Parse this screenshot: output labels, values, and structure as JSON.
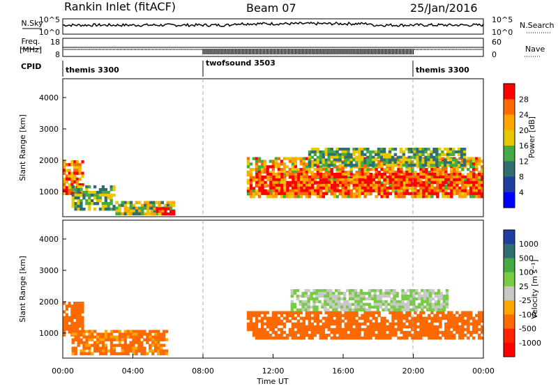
{
  "header": {
    "station": "Rankin Inlet (fitACF)",
    "beam": "Beam 07",
    "date": "25/Jan/2016"
  },
  "side_labels": {
    "nsky": "N.Sky",
    "freq_top": "Freq.",
    "freq_unit": "[MHz]",
    "cpid": "CPID",
    "nsearch": "N.Search",
    "nave": "Nave"
  },
  "chart_data": [
    {
      "type": "line",
      "name": "noise-panel",
      "left_axis_ticks": [
        "10^5",
        "10^0"
      ],
      "right_axis_ticks": [
        "10^5",
        "10^0"
      ],
      "series_left": "N.Sky",
      "series_right": "N.Search"
    },
    {
      "type": "line",
      "name": "freq-nave-panel",
      "left_axis_ticks": [
        "18",
        "8"
      ],
      "right_axis_ticks": [
        "60",
        "0"
      ],
      "series_left": "Freq.",
      "series_right": "Nave",
      "nave_high_interval_hours": [
        8.0,
        20.0
      ]
    },
    {
      "type": "table",
      "name": "cpid-bar",
      "segments": [
        {
          "label": "themis 3300",
          "start_hour": 0,
          "end_hour": 8.0
        },
        {
          "label": "twofsound 3503",
          "start_hour": 8.0,
          "end_hour": 20.0
        },
        {
          "label": "themis 3300",
          "start_hour": 20.0,
          "end_hour": 24.0
        }
      ]
    },
    {
      "type": "heatmap",
      "name": "power-panel",
      "ylabel": "Slant Range [km]",
      "y_ticks": [
        1000,
        2000,
        3000,
        4000
      ],
      "ylim": [
        200,
        4600
      ],
      "xlim_hours": [
        0,
        24
      ],
      "colorbar_label": "Power [dB]",
      "colorbar_ticks": [
        "28",
        "24",
        "20",
        "16",
        "12",
        "8",
        "4"
      ],
      "colorbar_colors": [
        "#ff0000",
        "#ff6a00",
        "#ffa500",
        "#e8c800",
        "#44aa44",
        "#2f6f6f",
        "#1f3fa0",
        "#0000ff"
      ],
      "regions": [
        {
          "start_hour": 0.0,
          "end_hour": 1.2,
          "range_lo": 900,
          "range_hi": 2000,
          "value": 24
        },
        {
          "start_hour": 0.5,
          "end_hour": 3.0,
          "range_lo": 400,
          "range_hi": 1200,
          "value": 12
        },
        {
          "start_hour": 3.0,
          "end_hour": 6.4,
          "range_lo": 250,
          "range_hi": 700,
          "value": 14
        },
        {
          "start_hour": 5.0,
          "end_hour": 6.4,
          "range_lo": 250,
          "range_hi": 500,
          "value": 26
        },
        {
          "start_hour": 10.5,
          "end_hour": 24.0,
          "range_lo": 800,
          "range_hi": 2100,
          "value": 20
        },
        {
          "start_hour": 11.0,
          "end_hour": 24.0,
          "range_lo": 900,
          "range_hi": 1600,
          "value": 27
        },
        {
          "start_hour": 14.0,
          "end_hour": 23.0,
          "range_lo": 1800,
          "range_hi": 2400,
          "value": 12
        }
      ]
    },
    {
      "type": "heatmap",
      "name": "velocity-panel",
      "ylabel": "Slant Range [km]",
      "xlabel": "Time UT",
      "y_ticks": [
        1000,
        2000,
        3000,
        4000
      ],
      "ylim": [
        200,
        4600
      ],
      "xlim_hours": [
        0,
        24
      ],
      "x_ticks": [
        "00:00",
        "04:00",
        "08:00",
        "12:00",
        "16:00",
        "20:00",
        "00:00"
      ],
      "colorbar_label": "Velocity [m s⁻¹]",
      "colorbar_ticks": [
        "1000",
        "500",
        "100",
        "25",
        "-25",
        "-100",
        "-500",
        "-1000"
      ],
      "colorbar_colors": [
        "#1f3fa0",
        "#2f6f6f",
        "#44aa44",
        "#77cc44",
        "#c8c8c8",
        "#ffa500",
        "#ff6a00",
        "#ff2200",
        "#ff0000"
      ],
      "regions": [
        {
          "start_hour": 0.0,
          "end_hour": 1.2,
          "range_lo": 900,
          "range_hi": 2000,
          "value": -200
        },
        {
          "start_hour": 0.5,
          "end_hour": 6.0,
          "range_lo": 300,
          "range_hi": 1100,
          "value": -120
        },
        {
          "start_hour": 10.5,
          "end_hour": 24.0,
          "range_lo": 800,
          "range_hi": 1700,
          "value": -150
        },
        {
          "start_hour": 13.0,
          "end_hour": 22.0,
          "range_lo": 1700,
          "range_hi": 2400,
          "value": 0
        }
      ]
    }
  ]
}
